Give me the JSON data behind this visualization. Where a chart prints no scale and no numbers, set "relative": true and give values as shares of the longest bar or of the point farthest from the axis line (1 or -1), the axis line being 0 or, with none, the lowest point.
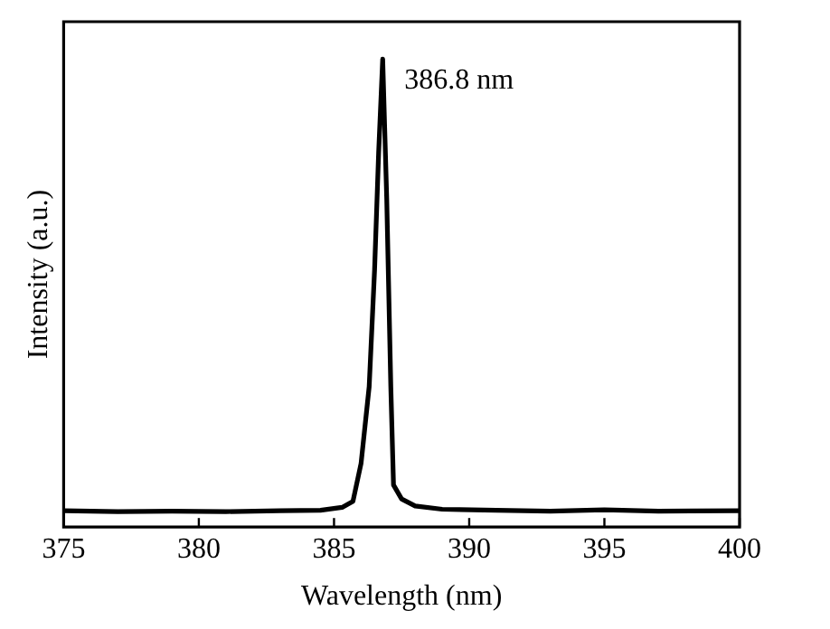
{
  "chart_data": {
    "type": "line",
    "xlabel": "Wavelength (nm)",
    "ylabel": "Intensity (a.u.)",
    "relative": true,
    "xlim": [
      375,
      400
    ],
    "xticks": [
      375,
      380,
      385,
      390,
      395,
      400
    ],
    "grid": false,
    "legend": false,
    "marker": "none",
    "line_style": "solid",
    "annotations": [
      {
        "text": "386.8 nm",
        "x": 386.8,
        "y": 1
      }
    ],
    "series": [
      {
        "color": "#000000",
        "x": [
          375,
          377,
          379,
          381,
          383,
          384.5,
          385.3,
          385.7,
          386.0,
          386.3,
          386.5,
          386.65,
          386.8,
          386.95,
          387.1,
          387.2,
          387.5,
          388,
          389,
          391,
          393,
          395,
          397,
          400
        ],
        "values": [
          0.035,
          0.033,
          0.034,
          0.033,
          0.035,
          0.036,
          0.042,
          0.055,
          0.136,
          0.3,
          0.55,
          0.8,
          1,
          0.7,
          0.3,
          0.09,
          0.06,
          0.045,
          0.038,
          0.036,
          0.034,
          0.037,
          0.034,
          0.035
        ]
      }
    ]
  }
}
